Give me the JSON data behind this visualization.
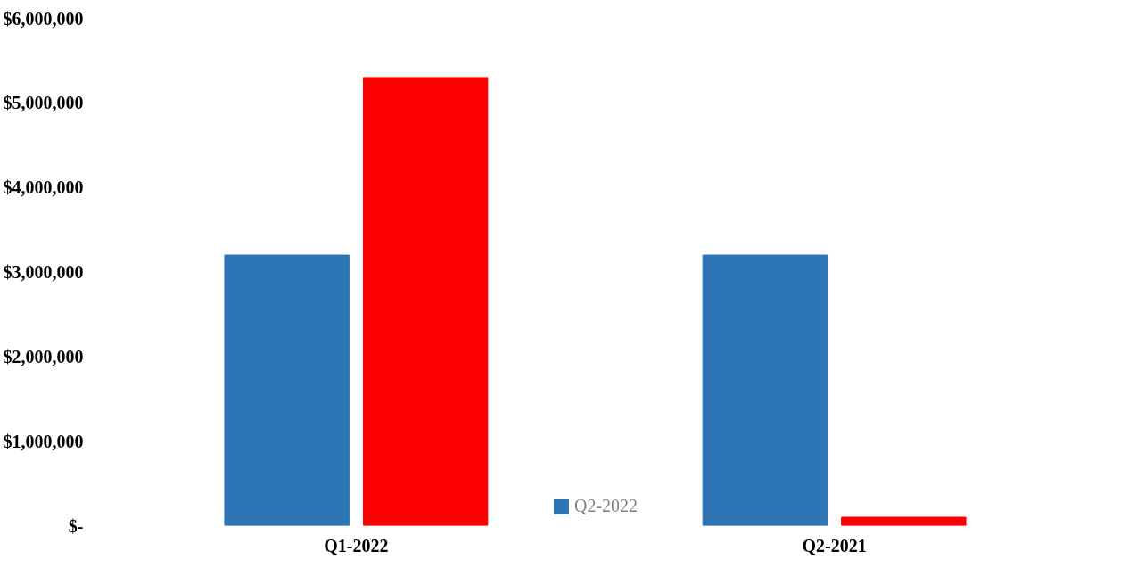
{
  "chart_data": {
    "type": "bar",
    "categories": [
      "Q1-2022",
      "Q2-2021"
    ],
    "series": [
      {
        "name": "Q2-2022",
        "color": "#2e75b6",
        "values": [
          3200000,
          3200000
        ]
      },
      {
        "color": "#ff0000",
        "values": [
          5300000,
          100000
        ]
      }
    ],
    "ylim": [
      0,
      6000000
    ],
    "yticks": [
      {
        "value": 0,
        "label": "$-"
      },
      {
        "value": 1000000,
        "label": "$1,000,000"
      },
      {
        "value": 2000000,
        "label": "$2,000,000"
      },
      {
        "value": 3000000,
        "label": "$3,000,000"
      },
      {
        "value": 4000000,
        "label": "$4,000,000"
      },
      {
        "value": 5000000,
        "label": "$5,000,000"
      },
      {
        "value": 6000000,
        "label": "$6,000,000"
      }
    ],
    "grid": false,
    "legend": "bottom"
  }
}
